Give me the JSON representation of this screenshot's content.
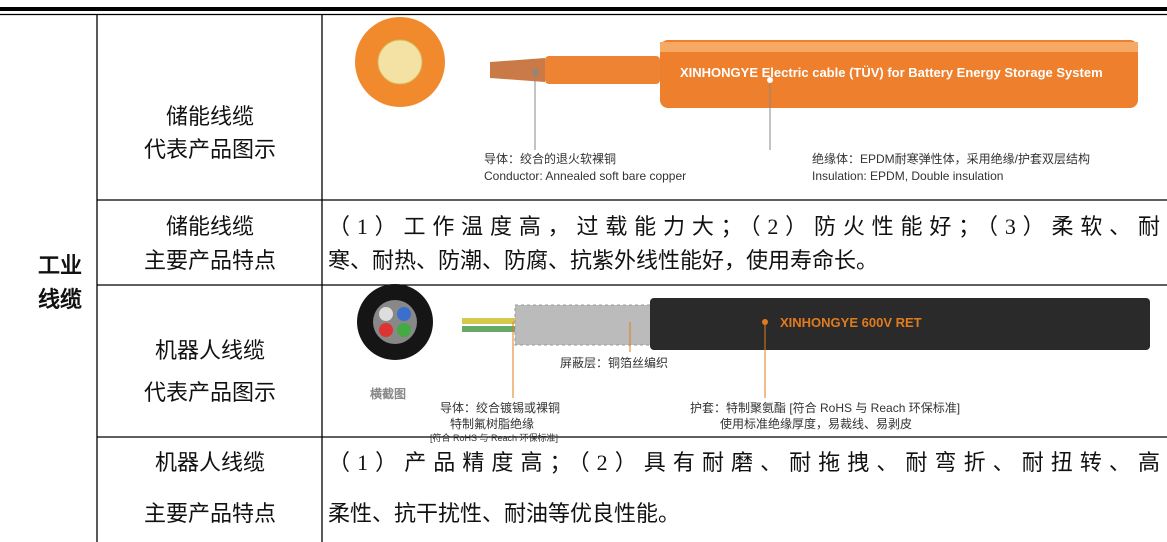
{
  "table": {
    "category": [
      "工业",
      "线缆"
    ],
    "rows": [
      {
        "label": [
          "储能线缆",
          "代表产品图示"
        ],
        "image": {
          "banner": "XINHONGYE  Electric cable (TÜV) for Battery Energy Storage System",
          "conductor_cn": "导体：绞合的退火软裸铜",
          "conductor_en": "Conductor:  Annealed soft bare copper",
          "insulation_cn": "绝缘体：EPDM耐寒弹性体，采用绝缘/护套双层结构",
          "insulation_en": "Insulation:  EPDM, Double insulation"
        }
      },
      {
        "label": [
          "储能线缆",
          "主要产品特点"
        ],
        "text": [
          "（1）工作温度高，过载能力大；（2）防火性能好；（3）柔软、耐",
          "寒、耐热、防潮、防腐、抗紫外线性能好，使用寿命长。"
        ]
      },
      {
        "label": [
          "机器人线缆",
          "代表产品图示"
        ],
        "image": {
          "banner": "XINHONGYE  600V RET",
          "shield": "屏蔽层：铜箔丝编织",
          "section": "横截图",
          "conductor": "导体：绞合镀锡或裸铜",
          "insulation": "特制氟树脂绝缘",
          "conductor_std": "[符合 RoHS 与 Reach 环保标准]",
          "sheath": "护套：特制聚氨酯 [符合 RoHS 与 Reach 环保标准]",
          "sheath_note": "使用标准绝缘厚度，易裁线、易剥皮"
        }
      },
      {
        "label": [
          "机器人线缆",
          "主要产品特点"
        ],
        "text": [
          "（1）产品精度高；（2）具有耐磨、耐拖拽、耐弯折、耐扭转、高",
          "柔性、抗干扰性、耐油等优良性能。"
        ]
      }
    ]
  }
}
